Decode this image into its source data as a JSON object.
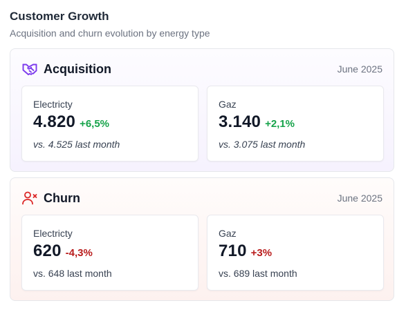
{
  "header": {
    "title": "Customer Growth",
    "subtitle": "Acquisition and churn evolution by energy type"
  },
  "acquisition": {
    "title": "Acquisition",
    "date": "June 2025",
    "icon": "handshake-icon",
    "accent": "#7c3aed",
    "cards": [
      {
        "label": "Electricty",
        "value": "4.820",
        "delta": "+6,5%",
        "comparison": "vs. 4.525 last month"
      },
      {
        "label": "Gaz",
        "value": "3.140",
        "delta": "+2,1%",
        "comparison": "vs. 3.075 last month"
      }
    ]
  },
  "churn": {
    "title": "Churn",
    "date": "June 2025",
    "icon": "user-remove-icon",
    "accent": "#dc2626",
    "cards": [
      {
        "label": "Electricty",
        "value": "620",
        "delta": "-4,3%",
        "comparison": "vs. 648 last month"
      },
      {
        "label": "Gaz",
        "value": "710",
        "delta": "+3%",
        "comparison": "vs. 689 last month"
      }
    ]
  },
  "colors": {
    "positive": "#16a34a",
    "negative": "#b91c1c"
  }
}
